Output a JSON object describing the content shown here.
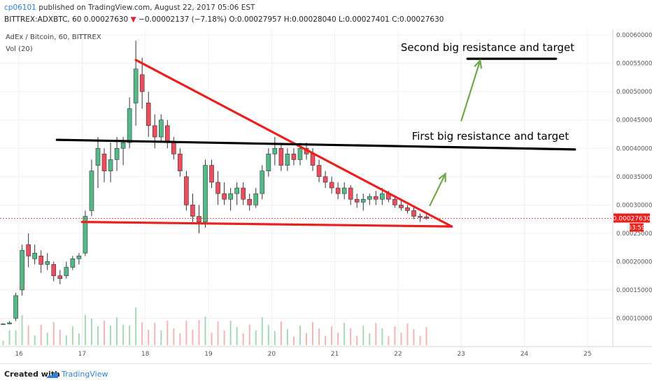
{
  "header": {
    "username": "cp06101",
    "published_text": "published on TradingView.com, August 22, 2017 05:06 EST",
    "symbol": "BITTREX:ADXBTC, 60",
    "last_price": "0.00027630",
    "change_arrow": "▼",
    "change": "−0.00002137 (−7.18%)",
    "ohlc": "O:0.00027957 H:0.00028040 L:0.00027401 C:0.00027630"
  },
  "chart_data": {
    "type": "candlestick",
    "title": "AdEx / Bitcoin, 60, BITTREX",
    "volume_label": "Vol (20)",
    "x_ticks": [
      "16",
      "17",
      "18",
      "19",
      "20",
      "21",
      "22",
      "23",
      "24",
      "25"
    ],
    "y_ticks": [
      "0.00010000",
      "0.00015000",
      "0.00020000",
      "0.00025000",
      "0.00030000",
      "0.00035000",
      "0.00040000",
      "0.00045000",
      "0.00050000",
      "0.00055000",
      "0.00060000"
    ],
    "ylim": [
      5e-05,
      0.00061
    ],
    "xlim": [
      15.7,
      25.4
    ],
    "current_price": "0.00027630",
    "countdown": "53:59",
    "grid": true,
    "annotations": [
      {
        "text": "Second big resistance and target",
        "color": "#000000"
      },
      {
        "text": "First big resistance and target",
        "color": "#000000"
      }
    ],
    "lines": [
      {
        "name": "descending-resistance",
        "color": "#e8211e",
        "x": [
          17.85,
          22.85
        ],
        "y": [
          0.000556,
          0.000262
        ]
      },
      {
        "name": "support",
        "color": "#e8211e",
        "x": [
          17.0,
          22.85
        ],
        "y": [
          0.00027,
          0.000262
        ]
      },
      {
        "name": "horizontal-resistance",
        "color": "#000000",
        "x": [
          16.6,
          24.8
        ],
        "y": [
          0.000415,
          0.000398
        ]
      },
      {
        "name": "second-target",
        "color": "#000000",
        "x": [
          23.1,
          24.5
        ],
        "y": [
          0.000558,
          0.000558
        ]
      }
    ],
    "arrows": [
      {
        "color": "#6fa84a",
        "x": [
          22.5,
          22.75
        ],
        "y": [
          0.000298,
          0.000355
        ]
      },
      {
        "color": "#6fa84a",
        "x": [
          23.0,
          23.3
        ],
        "y": [
          0.000448,
          0.000555
        ]
      }
    ],
    "candles": [
      [
        15.75,
        9e-05,
        9.1e-05,
        8.9e-05,
        9e-05
      ],
      [
        15.85,
        9e-05,
        9.5e-05,
        8.9e-05,
        9.2e-05
      ],
      [
        15.95,
        0.0001,
        0.000145,
        9.5e-05,
        0.00014
      ],
      [
        16.05,
        0.00015,
        0.00023,
        0.00014,
        0.00022
      ],
      [
        16.15,
        0.00023,
        0.00025,
        0.00019,
        0.00021
      ],
      [
        16.25,
        0.000205,
        0.00023,
        0.000195,
        0.000215
      ],
      [
        16.35,
        0.00021,
        0.00022,
        0.00018,
        0.000195
      ],
      [
        16.45,
        0.000195,
        0.000215,
        0.000185,
        0.0002
      ],
      [
        16.55,
        0.000195,
        0.0002,
        0.000165,
        0.000175
      ],
      [
        16.65,
        0.000175,
        0.000185,
        0.00016,
        0.00017
      ],
      [
        16.75,
        0.000175,
        0.0002,
        0.00017,
        0.00019
      ],
      [
        16.85,
        0.00019,
        0.00021,
        0.000185,
        0.000205
      ],
      [
        16.95,
        0.000205,
        0.000215,
        0.000195,
        0.00021
      ],
      [
        17.05,
        0.000215,
        0.00029,
        0.00021,
        0.00028
      ],
      [
        17.15,
        0.00029,
        0.00038,
        0.00028,
        0.00036
      ],
      [
        17.25,
        0.00037,
        0.00042,
        0.00033,
        0.0004
      ],
      [
        17.35,
        0.00039,
        0.0004,
        0.00034,
        0.00036
      ],
      [
        17.45,
        0.00036,
        0.00041,
        0.00034,
        0.00038
      ],
      [
        17.55,
        0.00038,
        0.00042,
        0.00036,
        0.0004
      ],
      [
        17.65,
        0.0004,
        0.00042,
        0.00037,
        0.00041
      ],
      [
        17.75,
        0.00041,
        0.00049,
        0.0004,
        0.00047
      ],
      [
        17.85,
        0.00048,
        0.00059,
        0.00044,
        0.00054
      ],
      [
        17.95,
        0.00053,
        0.00056,
        0.00047,
        0.0005
      ],
      [
        18.05,
        0.00048,
        0.0005,
        0.00042,
        0.00044
      ],
      [
        18.15,
        0.00044,
        0.00046,
        0.0004,
        0.00042
      ],
      [
        18.25,
        0.00042,
        0.00046,
        0.00041,
        0.00045
      ],
      [
        18.35,
        0.00044,
        0.00045,
        0.0004,
        0.00041
      ],
      [
        18.45,
        0.00041,
        0.00042,
        0.00038,
        0.00039
      ],
      [
        18.55,
        0.00039,
        0.0004,
        0.00035,
        0.00036
      ],
      [
        18.65,
        0.00035,
        0.00036,
        0.00029,
        0.0003
      ],
      [
        18.75,
        0.0003,
        0.00032,
        0.00027,
        0.00028
      ],
      [
        18.85,
        0.00028,
        0.0003,
        0.00025,
        0.00027
      ],
      [
        18.95,
        0.00027,
        0.00038,
        0.00026,
        0.00037
      ],
      [
        19.05,
        0.00037,
        0.00038,
        0.00033,
        0.00034
      ],
      [
        19.15,
        0.00034,
        0.00036,
        0.0003,
        0.00032
      ],
      [
        19.25,
        0.00032,
        0.00034,
        0.0003,
        0.00031
      ],
      [
        19.35,
        0.00031,
        0.00033,
        0.00029,
        0.00032
      ],
      [
        19.45,
        0.00032,
        0.00034,
        0.0003,
        0.00033
      ],
      [
        19.55,
        0.00033,
        0.00034,
        0.0003,
        0.00031
      ],
      [
        19.65,
        0.00031,
        0.00032,
        0.00029,
        0.0003
      ],
      [
        19.75,
        0.0003,
        0.00033,
        0.000295,
        0.00032
      ],
      [
        19.85,
        0.00032,
        0.00037,
        0.00031,
        0.00036
      ],
      [
        19.95,
        0.00036,
        0.0004,
        0.00035,
        0.00039
      ],
      [
        20.05,
        0.00039,
        0.00042,
        0.00037,
        0.0004
      ],
      [
        20.15,
        0.0004,
        0.00041,
        0.00036,
        0.00037
      ],
      [
        20.25,
        0.00037,
        0.0004,
        0.00036,
        0.00039
      ],
      [
        20.35,
        0.00039,
        0.0004,
        0.00037,
        0.00038
      ],
      [
        20.45,
        0.00038,
        0.00041,
        0.00037,
        0.0004
      ],
      [
        20.55,
        0.0004,
        0.00041,
        0.00038,
        0.00039
      ],
      [
        20.65,
        0.00039,
        0.0004,
        0.00036,
        0.00037
      ],
      [
        20.75,
        0.00037,
        0.00038,
        0.00034,
        0.00035
      ],
      [
        20.85,
        0.00035,
        0.00036,
        0.00033,
        0.00034
      ],
      [
        20.95,
        0.00034,
        0.00035,
        0.00032,
        0.00033
      ],
      [
        21.05,
        0.00033,
        0.00034,
        0.00031,
        0.00032
      ],
      [
        21.15,
        0.00032,
        0.00034,
        0.00031,
        0.00033
      ],
      [
        21.25,
        0.00033,
        0.000335,
        0.0003,
        0.00031
      ],
      [
        21.35,
        0.00031,
        0.00032,
        0.000295,
        0.000305
      ],
      [
        21.45,
        0.000305,
        0.00032,
        0.00029,
        0.00031
      ],
      [
        21.55,
        0.00031,
        0.00032,
        0.0003,
        0.000315
      ],
      [
        21.65,
        0.000315,
        0.000325,
        0.0003,
        0.00031
      ],
      [
        21.75,
        0.00031,
        0.00033,
        0.0003,
        0.00032
      ],
      [
        21.85,
        0.00032,
        0.000325,
        0.000305,
        0.00031
      ],
      [
        21.95,
        0.00031,
        0.000315,
        0.000295,
        0.0003
      ],
      [
        22.05,
        0.0003,
        0.00031,
        0.00029,
        0.000295
      ],
      [
        22.15,
        0.000295,
        0.0003,
        0.000285,
        0.00029
      ],
      [
        22.25,
        0.00029,
        0.000295,
        0.000275,
        0.00028
      ],
      [
        22.35,
        0.00028,
        0.000285,
        0.00027,
        0.000278
      ],
      [
        22.45,
        0.000279,
        0.000283,
        0.000274,
        0.000276
      ]
    ]
  },
  "footer": {
    "created_with": "Created with",
    "brand": "TradingView"
  }
}
